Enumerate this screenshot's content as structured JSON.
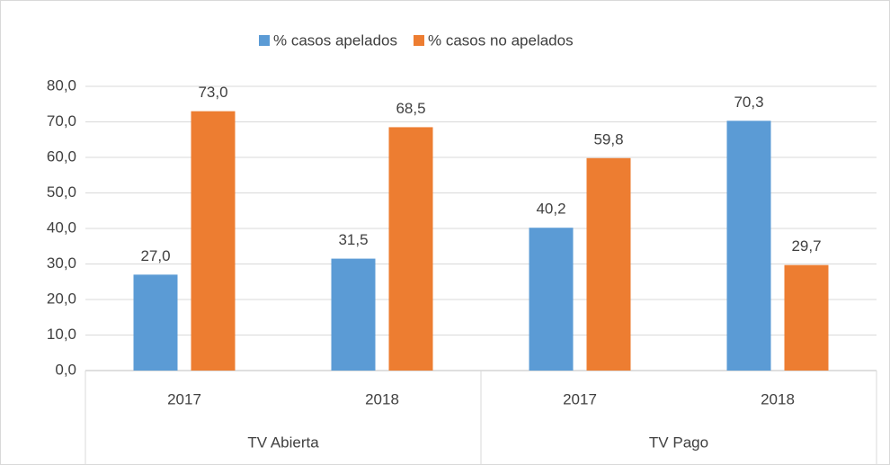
{
  "chart_data": {
    "type": "bar",
    "categories": [
      "2017",
      "2018",
      "2017",
      "2018"
    ],
    "groups": [
      "TV Abierta",
      "TV Pago"
    ],
    "series": [
      {
        "name": "% casos apelados",
        "color": "#5b9bd5",
        "values": [
          27.0,
          31.5,
          40.2,
          70.3
        ],
        "value_labels": [
          "27,0",
          "31,5",
          "40,2",
          "70,3"
        ]
      },
      {
        "name": "% casos no apelados",
        "color": "#ed7d31",
        "values": [
          73.0,
          68.5,
          59.8,
          29.7
        ],
        "value_labels": [
          "73,0",
          "68,5",
          "59,8",
          "29,7"
        ]
      }
    ],
    "ylim": [
      0,
      80
    ],
    "yticks": [
      {
        "value": 0,
        "label": "0,0"
      },
      {
        "value": 10,
        "label": "10,0"
      },
      {
        "value": 20,
        "label": "20,0"
      },
      {
        "value": 30,
        "label": "30,0"
      },
      {
        "value": 40,
        "label": "40,0"
      },
      {
        "value": 50,
        "label": "50,0"
      },
      {
        "value": 60,
        "label": "60,0"
      },
      {
        "value": 70,
        "label": "70,0"
      },
      {
        "value": 80,
        "label": "80,0"
      }
    ],
    "grid": true,
    "legend": "top"
  }
}
